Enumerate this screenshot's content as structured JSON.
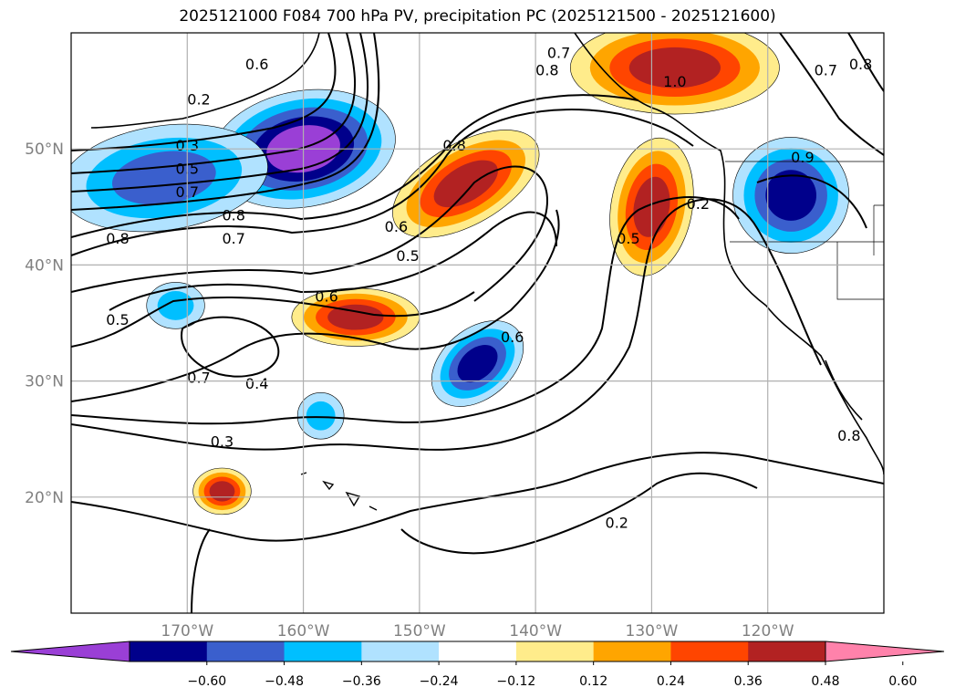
{
  "title": "2025121000 F084 700 hPa PV, precipitation PC (2025121500 - 2025121600)",
  "map": {
    "lon_range": [
      -180,
      -110
    ],
    "lat_range": [
      10,
      60
    ],
    "grid": true,
    "lon_ticks": [
      {
        "lon": -170,
        "label": "170°W"
      },
      {
        "lon": -160,
        "label": "160°W"
      },
      {
        "lon": -150,
        "label": "150°W"
      },
      {
        "lon": -140,
        "label": "140°W"
      },
      {
        "lon": -130,
        "label": "130°W"
      },
      {
        "lon": -120,
        "label": "120°W"
      }
    ],
    "lat_ticks": [
      {
        "lat": 50,
        "label": "50°N"
      },
      {
        "lat": 40,
        "label": "40°N"
      },
      {
        "lat": 30,
        "label": "30°N"
      },
      {
        "lat": 20,
        "label": "20°N"
      }
    ]
  },
  "colors": {
    "grid": "#b0b0b0",
    "tick": "#808080",
    "neg4": "#9a3fd6",
    "neg3": "#00008b",
    "neg2": "#3a5fcd",
    "neg1": "#00bfff",
    "neg0": "#b0e2ff",
    "zero": "#ffffff",
    "pos0": "#ffec8b",
    "pos1": "#ffa500",
    "pos2": "#ff4500",
    "pos3": "#b22222",
    "pos4": "#ff82ab"
  },
  "colorbar": {
    "extend": "both",
    "bins": [
      {
        "color": "#9a3fd6"
      },
      {
        "color": "#00008b"
      },
      {
        "color": "#3a5fcd"
      },
      {
        "color": "#00bfff"
      },
      {
        "color": "#b0e2ff"
      },
      {
        "color": "#ffffff"
      },
      {
        "color": "#ffec8b"
      },
      {
        "color": "#ffa500"
      },
      {
        "color": "#ff4500"
      },
      {
        "color": "#b22222"
      },
      {
        "color": "#ff82ab"
      }
    ],
    "tick_labels": [
      "−0.60",
      "−0.48",
      "−0.36",
      "−0.24",
      "−0.12",
      "0.12",
      "0.24",
      "0.36",
      "0.48",
      "0.60"
    ]
  },
  "contour_labels": [
    {
      "text": "0.2",
      "lon": -169.0,
      "lat": 54.0
    },
    {
      "text": "0.3",
      "lon": -170.0,
      "lat": 50.0
    },
    {
      "text": "0.5",
      "lon": -170.0,
      "lat": 48.0
    },
    {
      "text": "0.7",
      "lon": -170.0,
      "lat": 46.0
    },
    {
      "text": "0.8",
      "lon": -166.0,
      "lat": 44.0
    },
    {
      "text": "0.7",
      "lon": -166.0,
      "lat": 42.0
    },
    {
      "text": "0.8",
      "lon": -176.0,
      "lat": 42.0
    },
    {
      "text": "0.6",
      "lon": -164.0,
      "lat": 57.0
    },
    {
      "text": "0.6",
      "lon": -152.0,
      "lat": 43.0
    },
    {
      "text": "0.5",
      "lon": -151.0,
      "lat": 40.5
    },
    {
      "text": "0.6",
      "lon": -158.0,
      "lat": 37.0
    },
    {
      "text": "0.5",
      "lon": -176.0,
      "lat": 35.0
    },
    {
      "text": "0.7",
      "lon": -169.0,
      "lat": 30.0
    },
    {
      "text": "0.4",
      "lon": -164.0,
      "lat": 29.5
    },
    {
      "text": "0.3",
      "lon": -167.0,
      "lat": 24.5
    },
    {
      "text": "0.8",
      "lon": -147.0,
      "lat": 50.0
    },
    {
      "text": "0.7",
      "lon": -138.0,
      "lat": 58.0
    },
    {
      "text": "0.8",
      "lon": -139.0,
      "lat": 56.5
    },
    {
      "text": "1.0",
      "lon": -128.0,
      "lat": 55.5
    },
    {
      "text": "0.5",
      "lon": -132.0,
      "lat": 42.0
    },
    {
      "text": "0.2",
      "lon": -126.0,
      "lat": 45.0
    },
    {
      "text": "0.6",
      "lon": -142.0,
      "lat": 33.5
    },
    {
      "text": "0.2",
      "lon": -133.0,
      "lat": 17.5
    },
    {
      "text": "0.7",
      "lon": -115.0,
      "lat": 56.5
    },
    {
      "text": "0.8",
      "lon": -112.0,
      "lat": 57.0
    },
    {
      "text": "0.9",
      "lon": -117.0,
      "lat": 49.0
    },
    {
      "text": "0.8",
      "lon": -113.0,
      "lat": 25.0
    }
  ],
  "precip_blobs": [
    {
      "lon": -160.0,
      "lat": 50.0,
      "rx": 8,
      "ry": 5.0,
      "rot": -10,
      "level": -4
    },
    {
      "lon": -172.0,
      "lat": 47.5,
      "rx": 9,
      "ry": 4.5,
      "rot": -8,
      "level": -2
    },
    {
      "lon": -118.0,
      "lat": 46.0,
      "rx": 5,
      "ry": 5.0,
      "rot": 0,
      "level": -3
    },
    {
      "lon": -145.0,
      "lat": 31.5,
      "rx": 4.5,
      "ry": 3.0,
      "rot": -40,
      "level": -3
    },
    {
      "lon": -155.5,
      "lat": 35.5,
      "rx": 5.5,
      "ry": 2.5,
      "rot": 0,
      "level": 2
    },
    {
      "lon": -146.0,
      "lat": 47.0,
      "rx": 7,
      "ry": 3.5,
      "rot": -30,
      "level": 2
    },
    {
      "lon": -130.0,
      "lat": 45.0,
      "rx": 3.5,
      "ry": 6.0,
      "rot": 10,
      "level": 2
    },
    {
      "lon": -128.0,
      "lat": 57.0,
      "rx": 9,
      "ry": 4.0,
      "rot": 0,
      "level": 2
    },
    {
      "lon": -167.0,
      "lat": 20.5,
      "rx": 2.5,
      "ry": 2.0,
      "rot": 0,
      "level": 2
    },
    {
      "lon": -171.0,
      "lat": 36.5,
      "rx": 2.5,
      "ry": 2.0,
      "rot": 0,
      "level": -1
    },
    {
      "lon": -158.5,
      "lat": 27.0,
      "rx": 2.0,
      "ry": 2.0,
      "rot": 0,
      "level": -1
    }
  ]
}
